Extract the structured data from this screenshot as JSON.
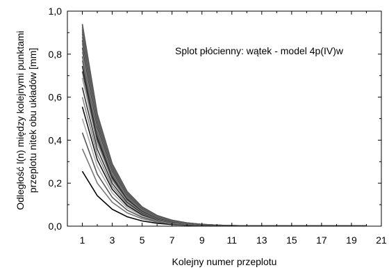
{
  "chart_data": {
    "type": "line",
    "annotation": "Splot płócienny: wątek - model 4p(IV)w",
    "xlabel": "Kolejny numer przeplotu",
    "ylabel_line1": "Odległość l(n) między kolejnymi punktami",
    "ylabel_line2": "przeplotu nitek obu układów [mm]",
    "xlim": [
      0,
      21
    ],
    "ylim": [
      0,
      1.0
    ],
    "x_ticks": [
      "1",
      "3",
      "5",
      "7",
      "9",
      "11",
      "13",
      "15",
      "17",
      "19",
      "21"
    ],
    "y_ticks": [
      "0,0",
      "0,2",
      "0,4",
      "0,6",
      "0,8",
      "1,0"
    ],
    "grid": false,
    "legend": "none",
    "x": [
      1,
      2,
      3,
      4,
      5,
      6,
      7,
      8,
      9,
      10,
      11,
      12,
      13,
      14,
      15,
      16,
      17,
      18,
      19,
      20
    ],
    "series_note": "family of exponentially decaying curves; each series given by start value at n=1 and its color",
    "series": [
      {
        "start": 0.255,
        "color": "#000000"
      },
      {
        "start": 0.36,
        "color": "#777777"
      },
      {
        "start": 0.435,
        "color": "#555555"
      },
      {
        "start": 0.5,
        "color": "#aaaaaa"
      },
      {
        "start": 0.555,
        "color": "#111111"
      },
      {
        "start": 0.6,
        "color": "#888888"
      },
      {
        "start": 0.645,
        "color": "#333333"
      },
      {
        "start": 0.69,
        "color": "#999999"
      },
      {
        "start": 0.72,
        "color": "#444444"
      },
      {
        "start": 0.745,
        "color": "#222222"
      },
      {
        "start": 0.77,
        "color": "#777777"
      },
      {
        "start": 0.79,
        "color": "#555555"
      },
      {
        "start": 0.81,
        "color": "#999999"
      },
      {
        "start": 0.83,
        "color": "#333333"
      },
      {
        "start": 0.85,
        "color": "#888888"
      },
      {
        "start": 0.865,
        "color": "#444444"
      },
      {
        "start": 0.88,
        "color": "#666666"
      },
      {
        "start": 0.895,
        "color": "#555555"
      },
      {
        "start": 0.905,
        "color": "#777777"
      },
      {
        "start": 0.915,
        "color": "#444444"
      },
      {
        "start": 0.925,
        "color": "#666666"
      },
      {
        "start": 0.935,
        "color": "#888888"
      },
      {
        "start": 0.94,
        "color": "#555555"
      }
    ]
  }
}
